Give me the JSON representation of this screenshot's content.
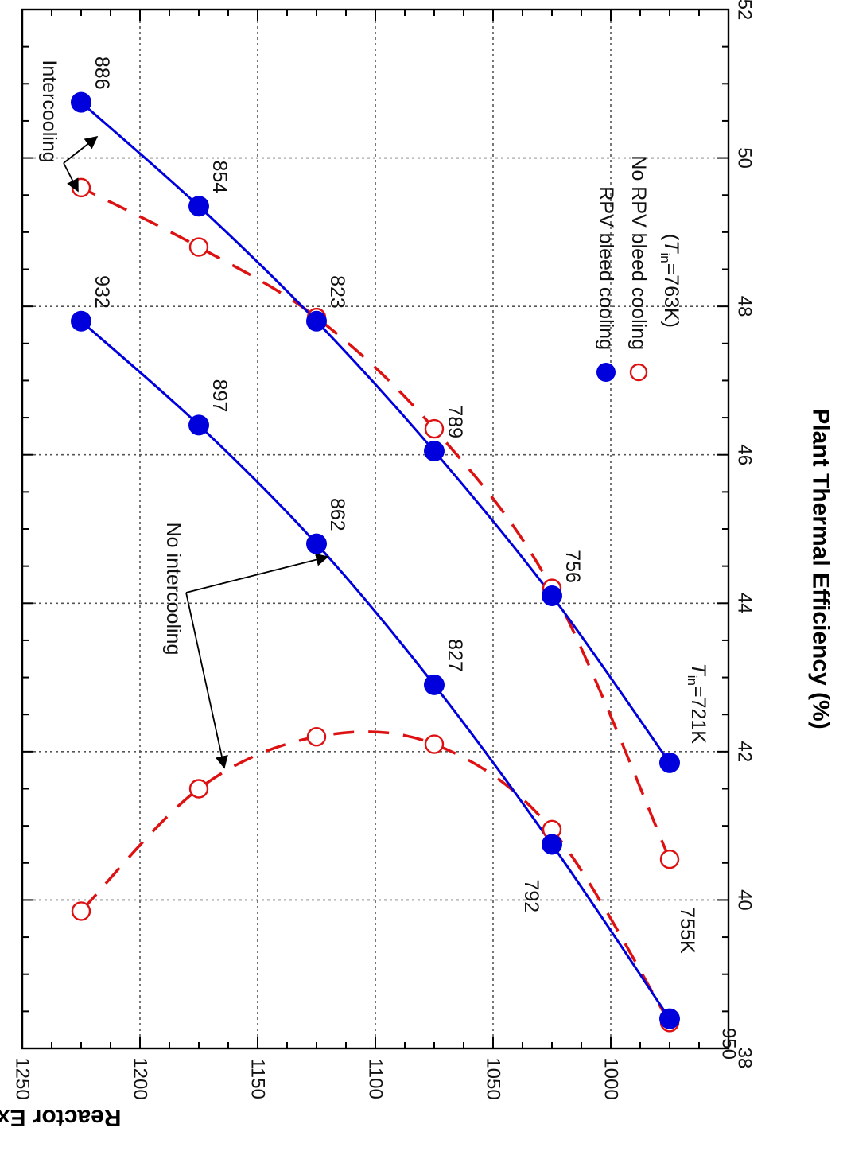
{
  "chart_data": {
    "type": "scatter",
    "orientation": "rotated-90-clockwise",
    "title": "",
    "xlabel": "Plant Thermal Efficiency (%)",
    "ylabel": "Reactor Exit (K)",
    "xlim": [
      38,
      52
    ],
    "ylim": [
      950,
      1250
    ],
    "x_ticks": [
      38,
      40,
      42,
      44,
      46,
      48,
      50,
      52
    ],
    "y_ticks": [
      950,
      1000,
      1050,
      1100,
      1150,
      1200,
      1250
    ],
    "x_tick_labels": [
      "38",
      "40",
      "42",
      "44",
      "46",
      "48",
      "50",
      "52"
    ],
    "y_tick_labels": [
      "950",
      "1000",
      "1050",
      "1100",
      "1150",
      "1200",
      "1250"
    ],
    "grid": true,
    "series": [
      {
        "legend_ref": "rpv",
        "marker": "filled-circle",
        "line": "solid",
        "color": "#0000dd",
        "points": [
          [
            38.4,
            975
          ],
          [
            40.75,
            1025
          ],
          [
            42.9,
            1075
          ],
          [
            44.8,
            1125
          ],
          [
            46.4,
            1175
          ],
          [
            47.8,
            1225
          ]
        ],
        "labels": [
          "755K",
          "792",
          "827",
          "862",
          "897",
          "932"
        ]
      },
      {
        "legend_ref": "rpv",
        "marker": "filled-circle",
        "line": "solid",
        "color": "#0000dd",
        "points": [
          [
            41.85,
            975
          ],
          [
            44.1,
            1025
          ],
          [
            46.05,
            1075
          ],
          [
            47.8,
            1125
          ],
          [
            49.35,
            1175
          ],
          [
            50.75,
            1225
          ]
        ],
        "labels": [
          "",
          "756",
          "789",
          "823",
          "854",
          "886"
        ]
      },
      {
        "legend_ref": "norpv",
        "marker": "open-circle",
        "line": "dashed",
        "color": "#dd1111",
        "points": [
          [
            38.35,
            975
          ],
          [
            40.95,
            1025
          ],
          [
            42.1,
            1075
          ],
          [
            42.2,
            1125
          ],
          [
            41.5,
            1175
          ],
          [
            39.85,
            1225
          ]
        ]
      },
      {
        "legend_ref": "norpv",
        "marker": "open-circle",
        "line": "dashed",
        "color": "#dd1111",
        "points": [
          [
            40.55,
            975
          ],
          [
            44.2,
            1025
          ],
          [
            46.35,
            1075
          ],
          [
            47.85,
            1125
          ],
          [
            48.8,
            1175
          ],
          [
            49.6,
            1225
          ]
        ]
      }
    ],
    "legend": {
      "placement": "top-right",
      "entries": [
        {
          "key": "rpv",
          "label": "RPV bleed cooling",
          "marker": "filled-circle",
          "color": "#0000dd"
        },
        {
          "key": "norpv",
          "label": "No RPV bleed cooling",
          "marker": "open-circle",
          "color": "#dd1111"
        }
      ],
      "note_prefix": "(",
      "note_T": "T",
      "note_sub": "in",
      "note_rest": "=763K)"
    },
    "annotations": {
      "intercooling": "Intercooling",
      "no_intercooling": "No intercooling",
      "tin_T": "T",
      "tin_sub": "in",
      "tin_rest": "=721K"
    },
    "colors": {
      "rpv": "#0000dd",
      "norpv": "#dd1111",
      "grid": "#555555",
      "axis": "#000000"
    }
  }
}
